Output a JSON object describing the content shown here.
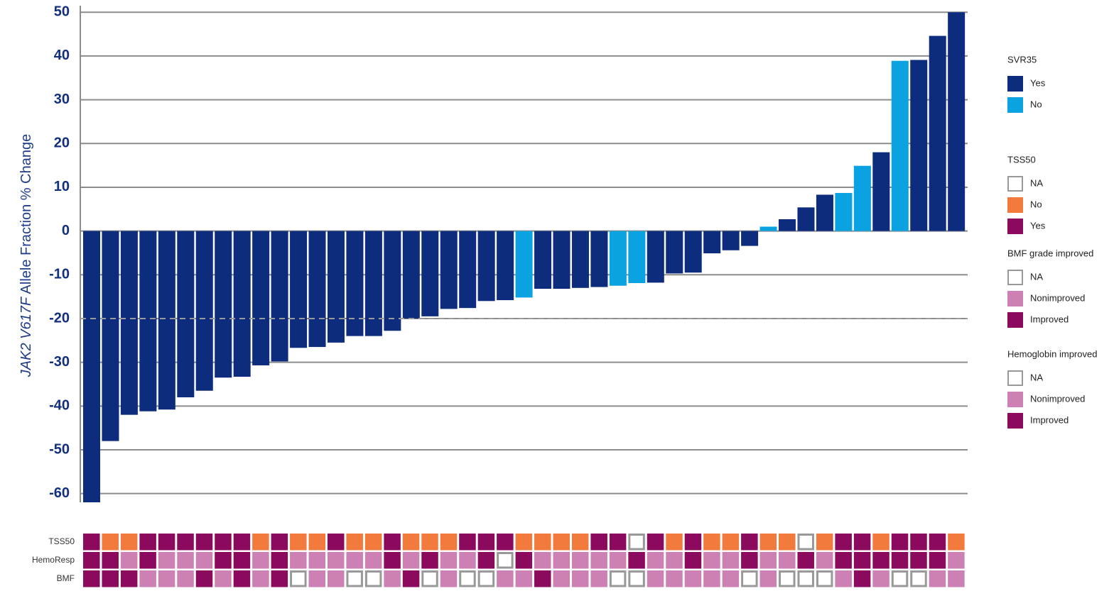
{
  "chart_data": {
    "type": "bar",
    "y_label": [
      "JAK2 V617F",
      "Allele Fraction % Change"
    ],
    "ylim": [
      -62,
      51.5
    ],
    "yticks": [
      -60,
      -50,
      -40,
      -30,
      -20,
      -10,
      0,
      10,
      20,
      30,
      40,
      50
    ],
    "grid": true,
    "reference_line": -20,
    "values": [
      -62,
      -48,
      -42,
      -41.2,
      -40.8,
      -38,
      -36.5,
      -33.5,
      -33.3,
      -30.7,
      -29.8,
      -26.7,
      -26.5,
      -25.5,
      -24,
      -24,
      -22.8,
      -20,
      -19.5,
      -17.8,
      -17.6,
      -16,
      -15.8,
      -15.2,
      -13.2,
      -13.2,
      -13,
      -12.8,
      -12.5,
      -11.9,
      -11.8,
      -9.7,
      -9.5,
      -5.1,
      -4.4,
      -3.4,
      1,
      2.7,
      5.4,
      8.3,
      8.7,
      14.9,
      18,
      38.9,
      39.1,
      44.6,
      50
    ],
    "bar_legend": "SVR35",
    "bar_groups": [
      "Yes",
      "Yes",
      "Yes",
      "Yes",
      "Yes",
      "Yes",
      "Yes",
      "Yes",
      "Yes",
      "Yes",
      "Yes",
      "Yes",
      "Yes",
      "Yes",
      "Yes",
      "Yes",
      "Yes",
      "Yes",
      "Yes",
      "Yes",
      "Yes",
      "Yes",
      "Yes",
      "No",
      "Yes",
      "Yes",
      "Yes",
      "Yes",
      "No",
      "No",
      "Yes",
      "Yes",
      "Yes",
      "Yes",
      "Yes",
      "Yes",
      "No",
      "Yes",
      "Yes",
      "Yes",
      "No",
      "No",
      "Yes",
      "No",
      "Yes",
      "Yes",
      "Yes"
    ],
    "tracks": [
      {
        "name": "TSS50",
        "legend": "TSS50",
        "values": [
          "Yes",
          "No",
          "No",
          "Yes",
          "Yes",
          "Yes",
          "Yes",
          "Yes",
          "Yes",
          "No",
          "Yes",
          "No",
          "No",
          "Yes",
          "No",
          "No",
          "Yes",
          "No",
          "No",
          "No",
          "Yes",
          "Yes",
          "Yes",
          "No",
          "No",
          "No",
          "No",
          "Yes",
          "Yes",
          "NA",
          "Yes",
          "No",
          "Yes",
          "No",
          "No",
          "Yes",
          "No",
          "No",
          "NA",
          "No",
          "Yes",
          "Yes",
          "No",
          "Yes",
          "Yes",
          "Yes",
          "No"
        ]
      },
      {
        "name": "HemoResp",
        "legend": "Hemoglobin improved",
        "values": [
          "Improved",
          "Improved",
          "Nonimproved",
          "Improved",
          "Nonimproved",
          "Nonimproved",
          "Nonimproved",
          "Improved",
          "Improved",
          "Nonimproved",
          "Improved",
          "Nonimproved",
          "Nonimproved",
          "Nonimproved",
          "Nonimproved",
          "Nonimproved",
          "Improved",
          "Nonimproved",
          "Improved",
          "Nonimproved",
          "Nonimproved",
          "Improved",
          "NA",
          "Improved",
          "Nonimproved",
          "Nonimproved",
          "Nonimproved",
          "Nonimproved",
          "Nonimproved",
          "Improved",
          "Nonimproved",
          "Nonimproved",
          "Improved",
          "Nonimproved",
          "Nonimproved",
          "Improved",
          "Nonimproved",
          "Nonimproved",
          "Improved",
          "Nonimproved",
          "Improved",
          "Improved",
          "Improved",
          "Improved",
          "Improved",
          "Improved",
          "Nonimproved"
        ]
      },
      {
        "name": "BMF",
        "legend": "BMF grade improved",
        "values": [
          "Improved",
          "Improved",
          "Improved",
          "Nonimproved",
          "Nonimproved",
          "Nonimproved",
          "Improved",
          "Nonimproved",
          "Improved",
          "Nonimproved",
          "Improved",
          "NA",
          "Nonimproved",
          "Nonimproved",
          "NA",
          "NA",
          "Nonimproved",
          "Improved",
          "NA",
          "Nonimproved",
          "NA",
          "NA",
          "Nonimproved",
          "Nonimproved",
          "Improved",
          "Nonimproved",
          "Nonimproved",
          "Nonimproved",
          "NA",
          "NA",
          "Nonimproved",
          "Nonimproved",
          "Nonimproved",
          "Nonimproved",
          "Nonimproved",
          "NA",
          "Nonimproved",
          "NA",
          "NA",
          "NA",
          "Nonimproved",
          "Improved",
          "Nonimproved",
          "NA",
          "NA",
          "Nonimproved",
          "Nonimproved"
        ]
      }
    ],
    "legends": [
      {
        "title": "SVR35",
        "items": [
          {
            "label": "Yes",
            "color": "#0d2c7e"
          },
          {
            "label": "No",
            "color": "#0ba2e2"
          }
        ]
      },
      {
        "title": "TSS50",
        "items": [
          {
            "label": "NA",
            "color": "#ffffff"
          },
          {
            "label": "No",
            "color": "#f27a3d"
          },
          {
            "label": "Yes",
            "color": "#8c0a5e"
          }
        ]
      },
      {
        "title": "BMF grade improved",
        "items": [
          {
            "label": "NA",
            "color": "#ffffff"
          },
          {
            "label": "Nonimproved",
            "color": "#cc80b4"
          },
          {
            "label": "Improved",
            "color": "#8c0a5e"
          }
        ]
      },
      {
        "title": "Hemoglobin improved",
        "items": [
          {
            "label": "NA",
            "color": "#ffffff"
          },
          {
            "label": "Nonimproved",
            "color": "#cc80b4"
          },
          {
            "label": "Improved",
            "color": "#8c0a5e"
          }
        ]
      }
    ]
  }
}
